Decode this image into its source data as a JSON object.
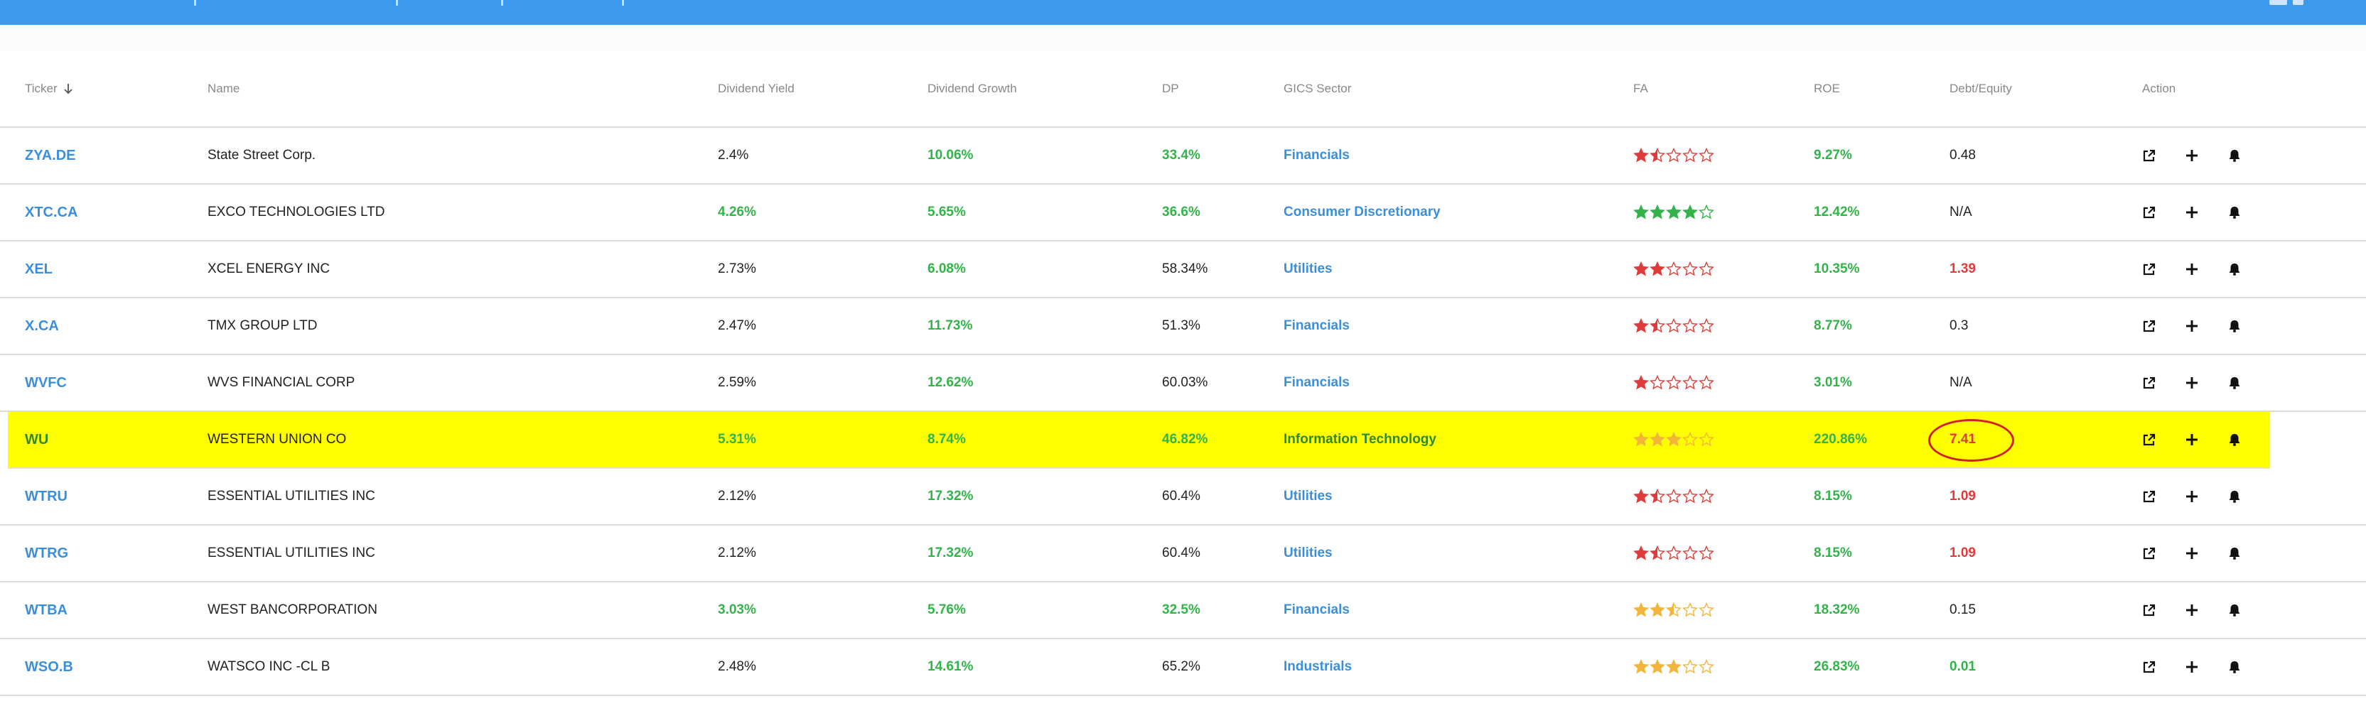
{
  "colors": {
    "topbar": "#3d99ee",
    "link_blue": "#3a8fdc",
    "green": "#33b34a",
    "red": "#e03b3b",
    "highlight": "#ffff00",
    "star_red": "#e03b3b",
    "star_green": "#33b34a",
    "star_gold": "#f3b43a",
    "annotation_circle": "#d0202a"
  },
  "table": {
    "headers": [
      "Ticker",
      "Name",
      "Dividend Yield",
      "Dividend Growth",
      "DP",
      "GICS Sector",
      "FA",
      "ROE",
      "Debt/Equity",
      "Action"
    ],
    "sort_icon": "arrow-down-icon",
    "action_icons": [
      "external-link-icon",
      "plus-icon",
      "bell-icon"
    ],
    "rows": [
      {
        "ticker": "ZYA.DE",
        "name": "State Street Corp.",
        "yield": "2.4%",
        "yield_color": "black",
        "growth": "10.06%",
        "growth_color": "green",
        "dp": "33.4%",
        "dp_color": "green",
        "sector": "Financials",
        "fa": 1.5,
        "fa_color": "red",
        "roe": "9.27%",
        "roe_color": "green",
        "de": "0.48",
        "de_color": "black",
        "highlight": false
      },
      {
        "ticker": "XTC.CA",
        "name": "EXCO TECHNOLOGIES LTD",
        "yield": "4.26%",
        "yield_color": "green",
        "growth": "5.65%",
        "growth_color": "green",
        "dp": "36.6%",
        "dp_color": "green",
        "sector": "Consumer Discretionary",
        "fa": 4,
        "fa_color": "green",
        "roe": "12.42%",
        "roe_color": "green",
        "de": "N/A",
        "de_color": "black",
        "highlight": false
      },
      {
        "ticker": "XEL",
        "name": "XCEL ENERGY INC",
        "yield": "2.73%",
        "yield_color": "black",
        "growth": "6.08%",
        "growth_color": "green",
        "dp": "58.34%",
        "dp_color": "black",
        "sector": "Utilities",
        "fa": 2,
        "fa_color": "red",
        "roe": "10.35%",
        "roe_color": "green",
        "de": "1.39",
        "de_color": "red",
        "highlight": false
      },
      {
        "ticker": "X.CA",
        "name": "TMX GROUP LTD",
        "yield": "2.47%",
        "yield_color": "black",
        "growth": "11.73%",
        "growth_color": "green",
        "dp": "51.3%",
        "dp_color": "black",
        "sector": "Financials",
        "fa": 1.5,
        "fa_color": "red",
        "roe": "8.77%",
        "roe_color": "green",
        "de": "0.3",
        "de_color": "black",
        "highlight": false
      },
      {
        "ticker": "WVFC",
        "name": "WVS FINANCIAL CORP",
        "yield": "2.59%",
        "yield_color": "black",
        "growth": "12.62%",
        "growth_color": "green",
        "dp": "60.03%",
        "dp_color": "black",
        "sector": "Financials",
        "fa": 1,
        "fa_color": "red",
        "roe": "3.01%",
        "roe_color": "green",
        "de": "N/A",
        "de_color": "black",
        "highlight": false
      },
      {
        "ticker": "WU",
        "name": "WESTERN UNION CO",
        "yield": "5.31%",
        "yield_color": "green",
        "growth": "8.74%",
        "growth_color": "green",
        "dp": "46.82%",
        "dp_color": "green",
        "sector": "Information Technology",
        "fa": 3,
        "fa_color": "gold",
        "roe": "220.86%",
        "roe_color": "green",
        "de": "7.41",
        "de_color": "red",
        "highlight": true
      },
      {
        "ticker": "WTRU",
        "name": "ESSENTIAL UTILITIES INC",
        "yield": "2.12%",
        "yield_color": "black",
        "growth": "17.32%",
        "growth_color": "green",
        "dp": "60.4%",
        "dp_color": "black",
        "sector": "Utilities",
        "fa": 1.5,
        "fa_color": "red",
        "roe": "8.15%",
        "roe_color": "green",
        "de": "1.09",
        "de_color": "red",
        "highlight": false
      },
      {
        "ticker": "WTRG",
        "name": "ESSENTIAL UTILITIES INC",
        "yield": "2.12%",
        "yield_color": "black",
        "growth": "17.32%",
        "growth_color": "green",
        "dp": "60.4%",
        "dp_color": "black",
        "sector": "Utilities",
        "fa": 1.5,
        "fa_color": "red",
        "roe": "8.15%",
        "roe_color": "green",
        "de": "1.09",
        "de_color": "red",
        "highlight": false
      },
      {
        "ticker": "WTBA",
        "name": "WEST BANCORPORATION",
        "yield": "3.03%",
        "yield_color": "green",
        "growth": "5.76%",
        "growth_color": "green",
        "dp": "32.5%",
        "dp_color": "green",
        "sector": "Financials",
        "fa": 2.5,
        "fa_color": "gold",
        "roe": "18.32%",
        "roe_color": "green",
        "de": "0.15",
        "de_color": "black",
        "highlight": false
      },
      {
        "ticker": "WSO.B",
        "name": "WATSCO INC -CL B",
        "yield": "2.48%",
        "yield_color": "black",
        "growth": "14.61%",
        "growth_color": "green",
        "dp": "65.2%",
        "dp_color": "black",
        "sector": "Industrials",
        "fa": 3,
        "fa_color": "gold",
        "roe": "26.83%",
        "roe_color": "green",
        "de": "0.01",
        "de_color": "green",
        "highlight": false
      }
    ]
  }
}
